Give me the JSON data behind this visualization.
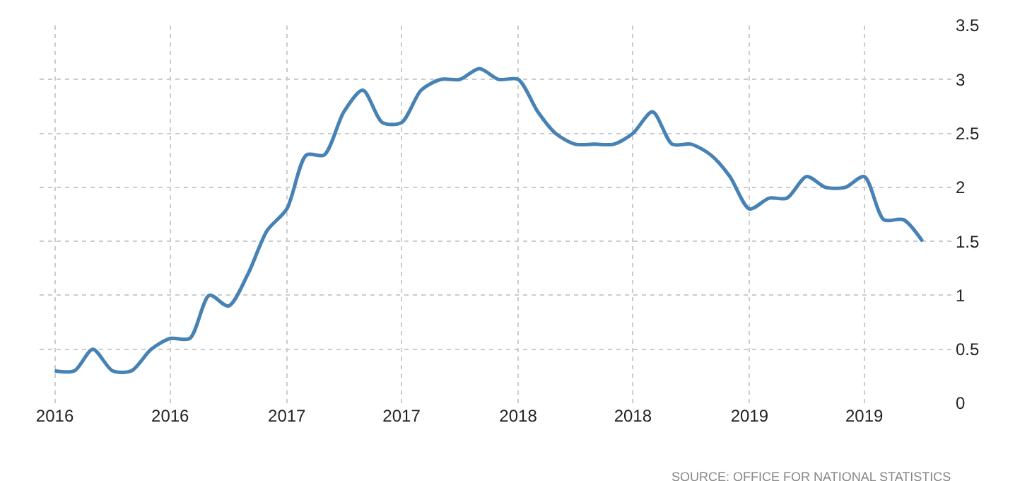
{
  "chart_data": {
    "type": "line",
    "x": [
      "2016-01",
      "2016-02",
      "2016-03",
      "2016-04",
      "2016-05",
      "2016-06",
      "2016-07",
      "2016-08",
      "2016-09",
      "2016-10",
      "2016-11",
      "2016-12",
      "2017-01",
      "2017-02",
      "2017-03",
      "2017-04",
      "2017-05",
      "2017-06",
      "2017-07",
      "2017-08",
      "2017-09",
      "2017-10",
      "2017-11",
      "2017-12",
      "2018-01",
      "2018-02",
      "2018-03",
      "2018-04",
      "2018-05",
      "2018-06",
      "2018-07",
      "2018-08",
      "2018-09",
      "2018-10",
      "2018-11",
      "2018-12",
      "2019-01",
      "2019-02",
      "2019-03",
      "2019-04",
      "2019-05",
      "2019-06",
      "2019-07",
      "2019-08",
      "2019-09",
      "2019-10"
    ],
    "series": [
      {
        "color": "#4682b4",
        "values": [
          0.3,
          0.3,
          0.5,
          0.3,
          0.3,
          0.5,
          0.6,
          0.6,
          1.0,
          0.9,
          1.2,
          1.6,
          1.8,
          2.3,
          2.3,
          2.7,
          2.9,
          2.6,
          2.6,
          2.9,
          3.0,
          3.0,
          3.1,
          3.0,
          3.0,
          2.7,
          2.5,
          2.4,
          2.4,
          2.4,
          2.5,
          2.7,
          2.4,
          2.4,
          2.3,
          2.1,
          1.8,
          1.9,
          1.9,
          2.1,
          2.0,
          2.0,
          2.1,
          1.7,
          1.7,
          1.5
        ]
      }
    ],
    "xlim": [
      "2015-12-08",
      "2019-11-20"
    ],
    "xticks": [
      {
        "value": "2016-01",
        "label": "2016"
      },
      {
        "value": "2016-07",
        "label": "2016"
      },
      {
        "value": "2017-01",
        "label": "2017"
      },
      {
        "value": "2017-07",
        "label": "2017"
      },
      {
        "value": "2018-01",
        "label": "2018"
      },
      {
        "value": "2018-07",
        "label": "2018"
      },
      {
        "value": "2019-01",
        "label": "2019"
      },
      {
        "value": "2019-07",
        "label": "2019"
      }
    ],
    "ylim": [
      0,
      3.5
    ],
    "yticks": [
      0,
      0.5,
      1,
      1.5,
      2,
      2.5,
      3,
      3.5
    ],
    "grid": true,
    "line_style": "solid",
    "marker": "none",
    "annotations": [
      "SOURCE: OFFICE FOR NATIONAL STATISTICS"
    ]
  }
}
